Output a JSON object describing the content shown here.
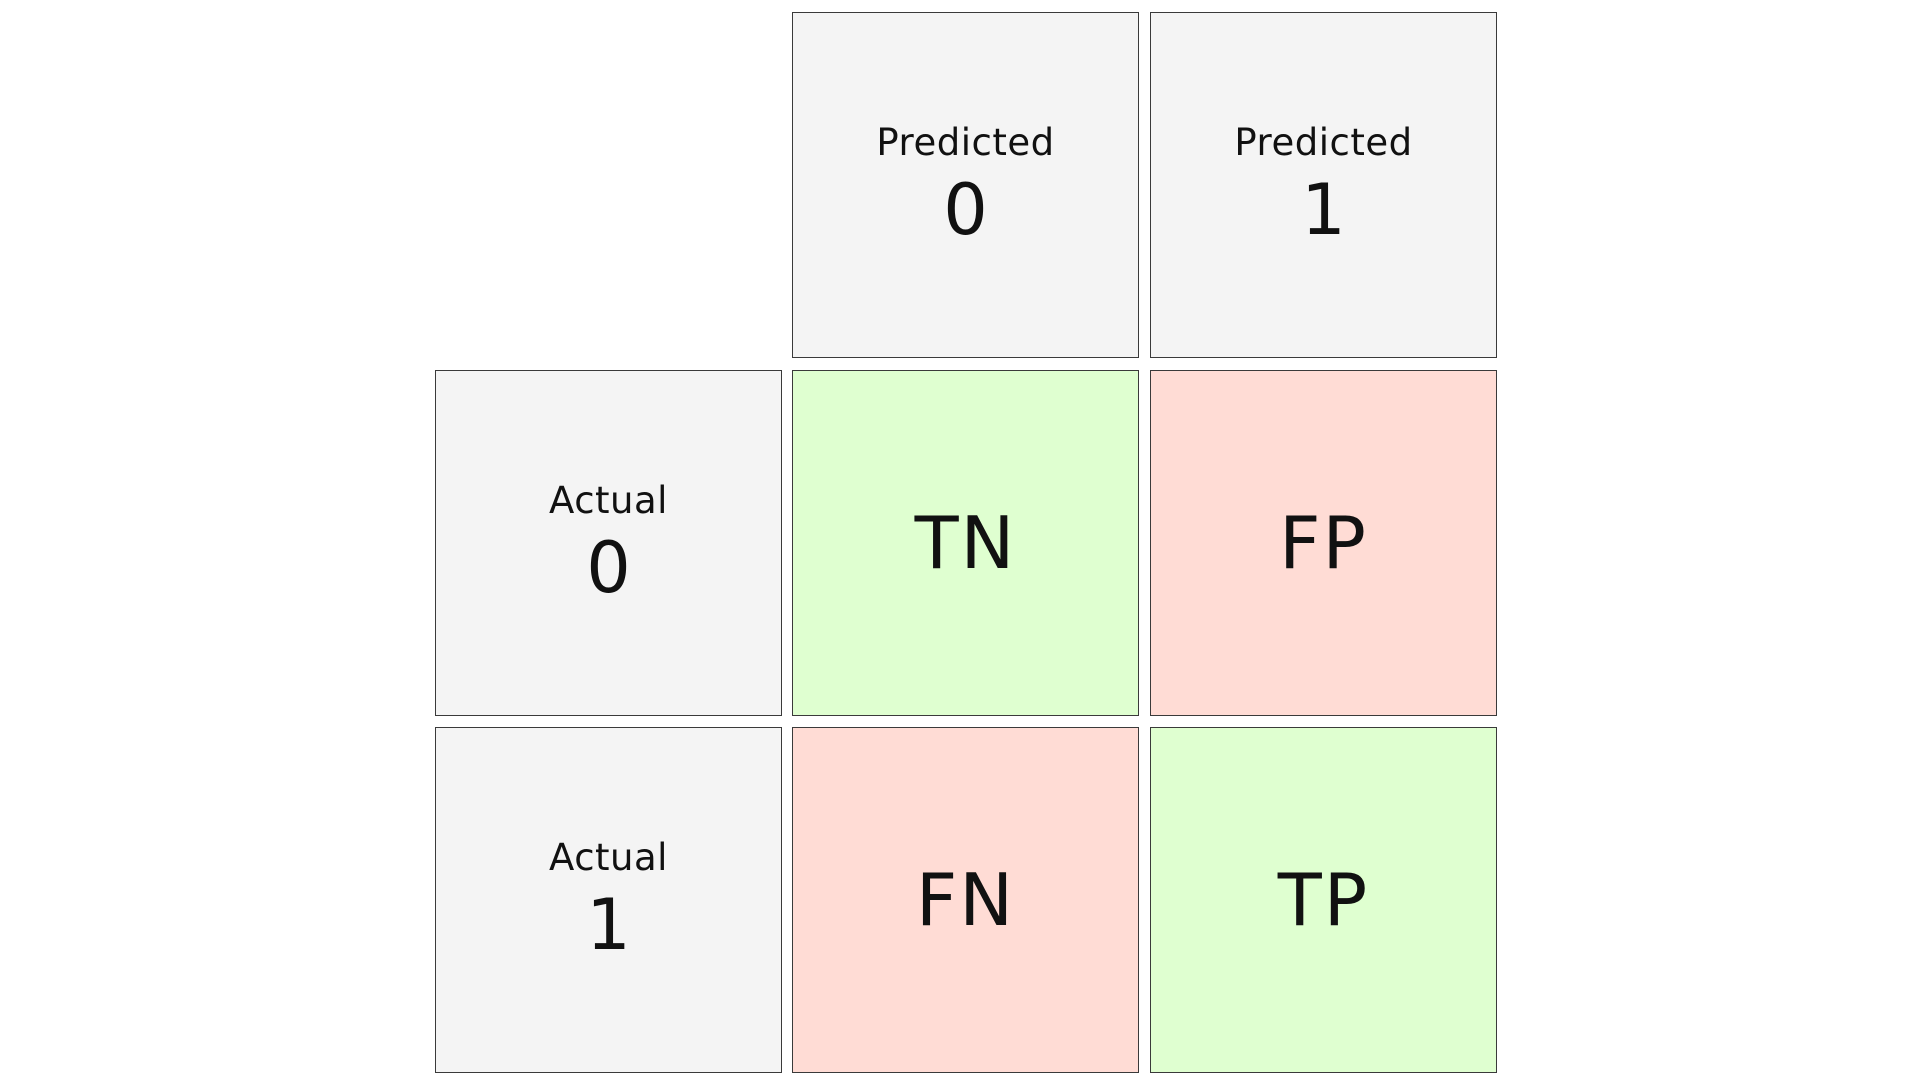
{
  "matrix": {
    "columns": [
      {
        "caption": "Predicted",
        "value": "0"
      },
      {
        "caption": "Predicted",
        "value": "1"
      }
    ],
    "rows": [
      {
        "caption": "Actual",
        "value": "0"
      },
      {
        "caption": "Actual",
        "value": "1"
      }
    ],
    "cells": [
      [
        "TN",
        "FP"
      ],
      [
        "FN",
        "TP"
      ]
    ],
    "colors": {
      "header_bg": "#f4f4f4",
      "correct_bg": "#dfffd0",
      "incorrect_bg": "#ffdcd5",
      "border": "#3a3a3a"
    }
  }
}
